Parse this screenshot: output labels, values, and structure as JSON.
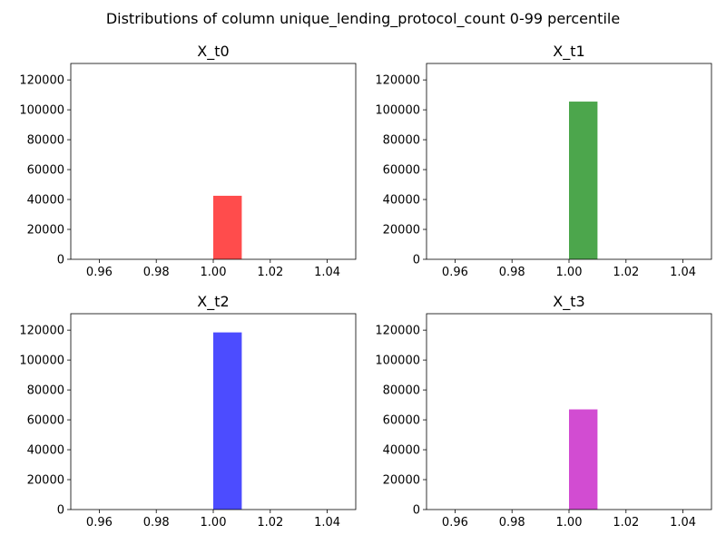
{
  "suptitle": "Distributions of column unique_lending_protocol_count 0-99 percentile",
  "chart_data": [
    {
      "type": "bar",
      "title": "X_t0",
      "color": "#ff0000",
      "alpha": 0.7,
      "xlim": [
        0.95,
        1.05
      ],
      "ylim": [
        0,
        131000
      ],
      "xticks": [
        0.96,
        0.98,
        1.0,
        1.02,
        1.04
      ],
      "xtick_labels": [
        "0.96",
        "0.98",
        "1.00",
        "1.02",
        "1.04"
      ],
      "yticks": [
        0,
        20000,
        40000,
        60000,
        80000,
        100000,
        120000
      ],
      "ytick_labels": [
        "0",
        "20000",
        "40000",
        "60000",
        "80000",
        "100000",
        "120000"
      ],
      "bins": [
        {
          "x0": 1.0,
          "x1": 1.01,
          "count": 42500
        }
      ]
    },
    {
      "type": "bar",
      "title": "X_t1",
      "color": "#008000",
      "alpha": 0.7,
      "xlim": [
        0.95,
        1.05
      ],
      "ylim": [
        0,
        131000
      ],
      "xticks": [
        0.96,
        0.98,
        1.0,
        1.02,
        1.04
      ],
      "xtick_labels": [
        "0.96",
        "0.98",
        "1.00",
        "1.02",
        "1.04"
      ],
      "yticks": [
        0,
        20000,
        40000,
        60000,
        80000,
        100000,
        120000
      ],
      "ytick_labels": [
        "0",
        "20000",
        "40000",
        "60000",
        "80000",
        "100000",
        "120000"
      ],
      "bins": [
        {
          "x0": 1.0,
          "x1": 1.01,
          "count": 105500
        }
      ]
    },
    {
      "type": "bar",
      "title": "X_t2",
      "color": "#0000ff",
      "alpha": 0.7,
      "xlim": [
        0.95,
        1.05
      ],
      "ylim": [
        0,
        131000
      ],
      "xticks": [
        0.96,
        0.98,
        1.0,
        1.02,
        1.04
      ],
      "xtick_labels": [
        "0.96",
        "0.98",
        "1.00",
        "1.02",
        "1.04"
      ],
      "yticks": [
        0,
        20000,
        40000,
        60000,
        80000,
        100000,
        120000
      ],
      "ytick_labels": [
        "0",
        "20000",
        "40000",
        "60000",
        "80000",
        "100000",
        "120000"
      ],
      "bins": [
        {
          "x0": 1.0,
          "x1": 1.01,
          "count": 118500
        }
      ]
    },
    {
      "type": "bar",
      "title": "X_t3",
      "color": "#bf00bf",
      "alpha": 0.7,
      "xlim": [
        0.95,
        1.05
      ],
      "ylim": [
        0,
        131000
      ],
      "xticks": [
        0.96,
        0.98,
        1.0,
        1.02,
        1.04
      ],
      "xtick_labels": [
        "0.96",
        "0.98",
        "1.00",
        "1.02",
        "1.04"
      ],
      "yticks": [
        0,
        20000,
        40000,
        60000,
        80000,
        100000,
        120000
      ],
      "ytick_labels": [
        "0",
        "20000",
        "40000",
        "60000",
        "80000",
        "100000",
        "120000"
      ],
      "bins": [
        {
          "x0": 1.0,
          "x1": 1.01,
          "count": 67000
        }
      ]
    }
  ]
}
